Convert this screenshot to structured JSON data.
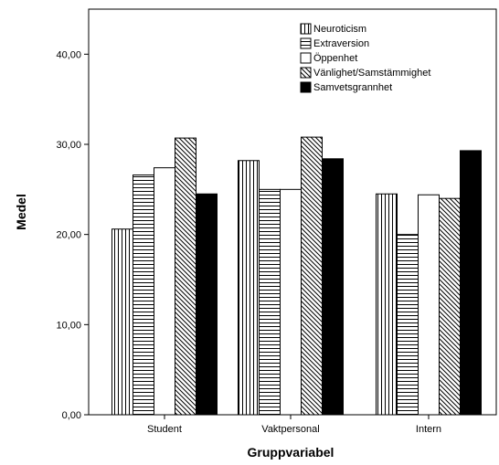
{
  "chart_data": {
    "type": "bar",
    "categories": [
      "Student",
      "Vaktpersonal",
      "Intern"
    ],
    "series": [
      {
        "name": "Neuroticism",
        "pattern": "vertical",
        "values": [
          20.6,
          28.2,
          24.5
        ]
      },
      {
        "name": "Extraversion",
        "pattern": "horizontal",
        "values": [
          26.6,
          25.0,
          20.0
        ]
      },
      {
        "name": "Öppenhet",
        "pattern": "none",
        "values": [
          27.4,
          25.0,
          24.4
        ]
      },
      {
        "name": "Vänlighet/Samstämmighet",
        "pattern": "diagonal",
        "values": [
          30.7,
          30.8,
          24.0
        ]
      },
      {
        "name": "Samvetsgrannhet",
        "pattern": "solid",
        "values": [
          24.5,
          28.4,
          29.3
        ]
      }
    ],
    "xlabel": "Gruppvariabel",
    "ylabel": "Medel",
    "ylim": [
      0,
      45
    ],
    "yticks": [
      0,
      10,
      20,
      30,
      40
    ],
    "ytick_labels": [
      "0,00",
      "10,00",
      "20,00",
      "30,00",
      "40,00"
    ],
    "legend_position": "top-right",
    "grid": false
  }
}
